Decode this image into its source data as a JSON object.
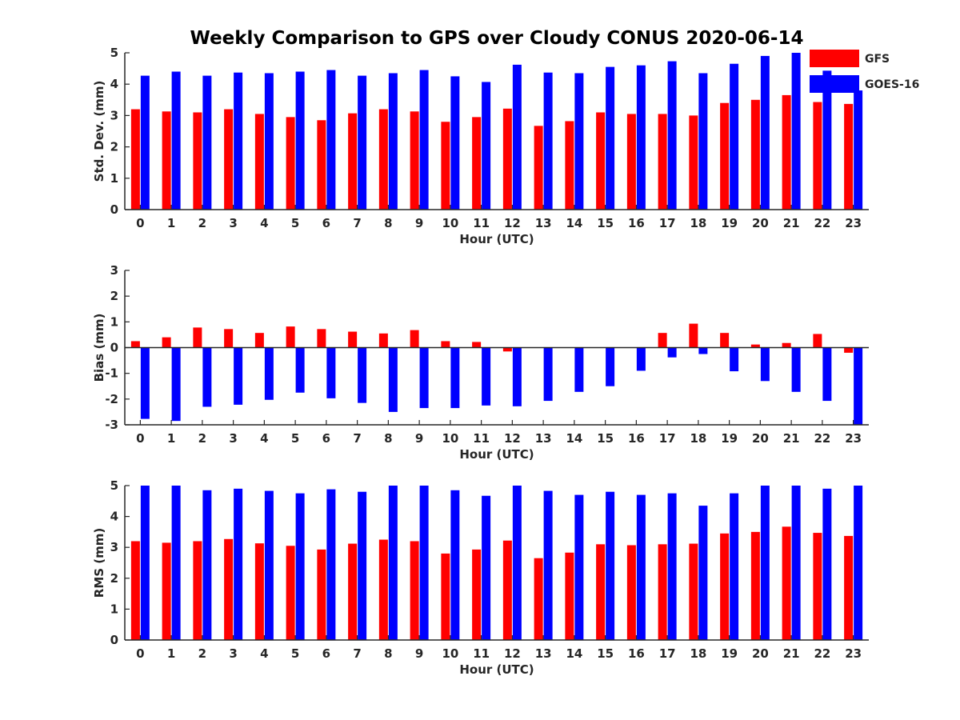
{
  "title": "Weekly Comparison to GPS over Cloudy CONUS 2020-06-14",
  "colors": {
    "GFS": "#ff0000",
    "GOES-16": "#0000ff",
    "axis": "#262626"
  },
  "legend": {
    "placement": "top-right",
    "entries": [
      "GFS",
      "GOES-16"
    ]
  },
  "chart_data": [
    {
      "type": "bar",
      "id": "stddev",
      "xlabel": "Hour (UTC)",
      "ylabel": "Std. Dev. (mm)",
      "ylim": [
        0,
        5
      ],
      "yticks": [
        0,
        1,
        2,
        3,
        4,
        5
      ],
      "categories": [
        "0",
        "1",
        "2",
        "3",
        "4",
        "5",
        "6",
        "7",
        "8",
        "9",
        "10",
        "11",
        "12",
        "13",
        "14",
        "15",
        "16",
        "17",
        "18",
        "19",
        "20",
        "21",
        "22",
        "23"
      ],
      "series": [
        {
          "name": "GFS",
          "values": [
            3.2,
            3.13,
            3.1,
            3.2,
            3.05,
            2.95,
            2.85,
            3.07,
            3.2,
            3.13,
            2.8,
            2.95,
            3.22,
            2.67,
            2.82,
            3.1,
            3.05,
            3.05,
            3.0,
            3.4,
            3.5,
            3.65,
            3.43,
            3.37
          ]
        },
        {
          "name": "GOES-16",
          "values": [
            4.27,
            4.4,
            4.27,
            4.37,
            4.35,
            4.4,
            4.45,
            4.27,
            4.35,
            4.45,
            4.25,
            4.07,
            4.62,
            4.37,
            4.35,
            4.55,
            4.6,
            4.73,
            4.35,
            4.65,
            4.9,
            5.0,
            4.43,
            3.8
          ]
        }
      ]
    },
    {
      "type": "bar",
      "id": "bias",
      "xlabel": "Hour (UTC)",
      "ylabel": "Bias (mm)",
      "ylim": [
        -3,
        3
      ],
      "yticks": [
        -3,
        -2,
        -1,
        0,
        1,
        2,
        3
      ],
      "categories": [
        "0",
        "1",
        "2",
        "3",
        "4",
        "5",
        "6",
        "7",
        "8",
        "9",
        "10",
        "11",
        "12",
        "13",
        "14",
        "15",
        "16",
        "17",
        "18",
        "19",
        "20",
        "21",
        "22",
        "23"
      ],
      "series": [
        {
          "name": "GFS",
          "values": [
            0.25,
            0.4,
            0.78,
            0.72,
            0.57,
            0.82,
            0.72,
            0.62,
            0.55,
            0.68,
            0.25,
            0.22,
            -0.15,
            0.0,
            0.0,
            0.0,
            0.0,
            0.57,
            0.93,
            0.57,
            0.12,
            0.18,
            0.53,
            -0.2
          ]
        },
        {
          "name": "GOES-16",
          "values": [
            -2.77,
            -2.85,
            -2.3,
            -2.22,
            -2.03,
            -1.75,
            -1.97,
            -2.15,
            -2.5,
            -2.35,
            -2.35,
            -2.25,
            -2.28,
            -2.07,
            -1.72,
            -1.5,
            -0.9,
            -0.38,
            -0.25,
            -0.92,
            -1.3,
            -1.72,
            -2.07,
            -3.0
          ]
        }
      ]
    },
    {
      "type": "bar",
      "id": "rms",
      "xlabel": "Hour (UTC)",
      "ylabel": "RMS (mm)",
      "ylim": [
        0,
        5
      ],
      "yticks": [
        0,
        1,
        2,
        3,
        4,
        5
      ],
      "categories": [
        "0",
        "1",
        "2",
        "3",
        "4",
        "5",
        "6",
        "7",
        "8",
        "9",
        "10",
        "11",
        "12",
        "13",
        "14",
        "15",
        "16",
        "17",
        "18",
        "19",
        "20",
        "21",
        "22",
        "23"
      ],
      "series": [
        {
          "name": "GFS",
          "values": [
            3.2,
            3.15,
            3.2,
            3.27,
            3.13,
            3.05,
            2.93,
            3.12,
            3.25,
            3.2,
            2.8,
            2.93,
            3.22,
            2.65,
            2.83,
            3.1,
            3.07,
            3.1,
            3.12,
            3.45,
            3.5,
            3.67,
            3.47,
            3.37
          ]
        },
        {
          "name": "GOES-16",
          "values": [
            5.0,
            5.0,
            4.85,
            4.9,
            4.83,
            4.75,
            4.88,
            4.8,
            5.0,
            5.0,
            4.85,
            4.67,
            5.0,
            4.83,
            4.7,
            4.8,
            4.7,
            4.75,
            4.35,
            4.75,
            5.0,
            5.0,
            4.9,
            5.0
          ]
        }
      ]
    }
  ]
}
